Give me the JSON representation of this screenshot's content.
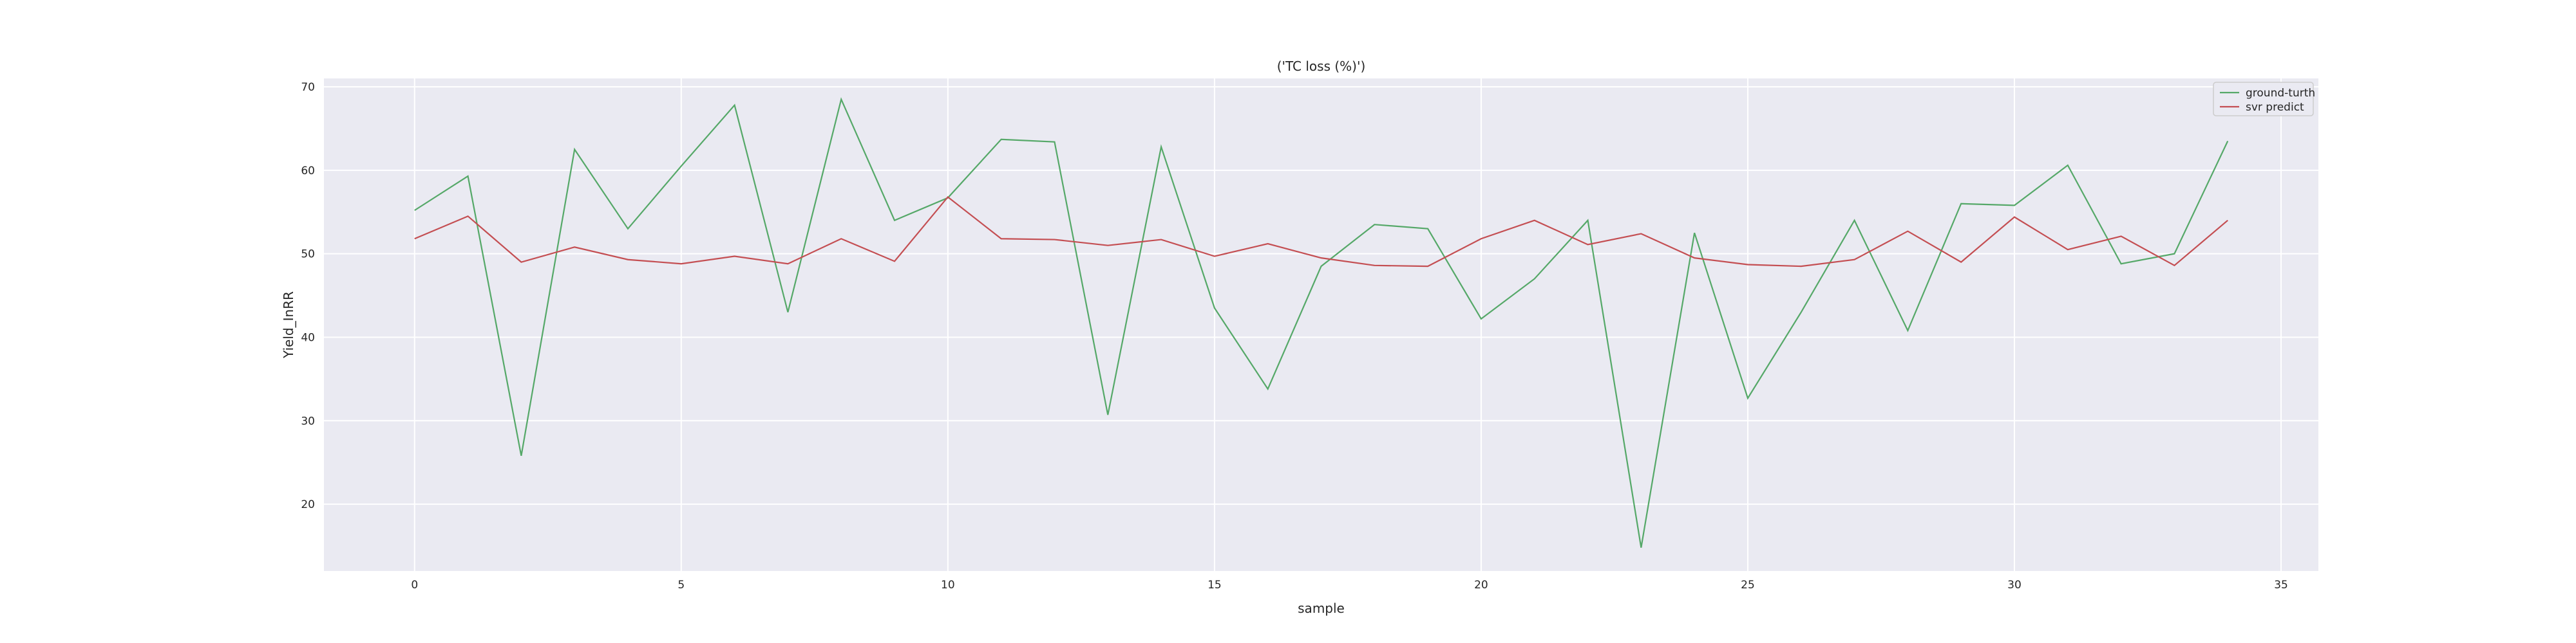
{
  "chart_data": {
    "type": "line",
    "title": "('TC loss (%)')",
    "xlabel": "sample",
    "ylabel": "Yield_InRR",
    "xlim": [
      -1.7,
      35.7
    ],
    "ylim": [
      12,
      71
    ],
    "xticks": [
      0,
      5,
      10,
      15,
      20,
      25,
      30,
      35
    ],
    "yticks": [
      20,
      30,
      40,
      50,
      60,
      70
    ],
    "grid": true,
    "legend_position": "upper-right",
    "x": [
      0,
      1,
      2,
      3,
      4,
      5,
      6,
      7,
      8,
      9,
      10,
      11,
      12,
      13,
      14,
      15,
      16,
      17,
      18,
      19,
      20,
      21,
      22,
      23,
      24,
      25,
      26,
      27,
      28,
      29,
      30,
      31,
      32,
      33,
      34
    ],
    "series": [
      {
        "name": "ground-turth",
        "color": "#55a868",
        "values": [
          55.2,
          59.3,
          25.8,
          62.5,
          53.0,
          60.5,
          67.8,
          43.0,
          68.5,
          54.0,
          56.7,
          63.7,
          63.4,
          30.7,
          62.8,
          43.5,
          33.8,
          48.5,
          53.5,
          53.0,
          42.2,
          47.0,
          54.0,
          14.8,
          52.5,
          32.7,
          43.0,
          54.0,
          40.8,
          56.0,
          55.8,
          60.6,
          48.8,
          50.0,
          63.5
        ]
      },
      {
        "name": "svr predict",
        "color": "#c44e52",
        "values": [
          51.8,
          54.5,
          49.0,
          50.8,
          49.3,
          48.8,
          49.7,
          48.8,
          51.8,
          49.1,
          56.8,
          51.8,
          51.7,
          51.0,
          51.7,
          49.7,
          51.2,
          49.5,
          48.6,
          48.5,
          51.8,
          54.0,
          51.1,
          52.4,
          49.5,
          48.7,
          48.5,
          49.3,
          52.7,
          49.0,
          54.4,
          50.5,
          52.1,
          48.6,
          54.0
        ]
      }
    ]
  }
}
